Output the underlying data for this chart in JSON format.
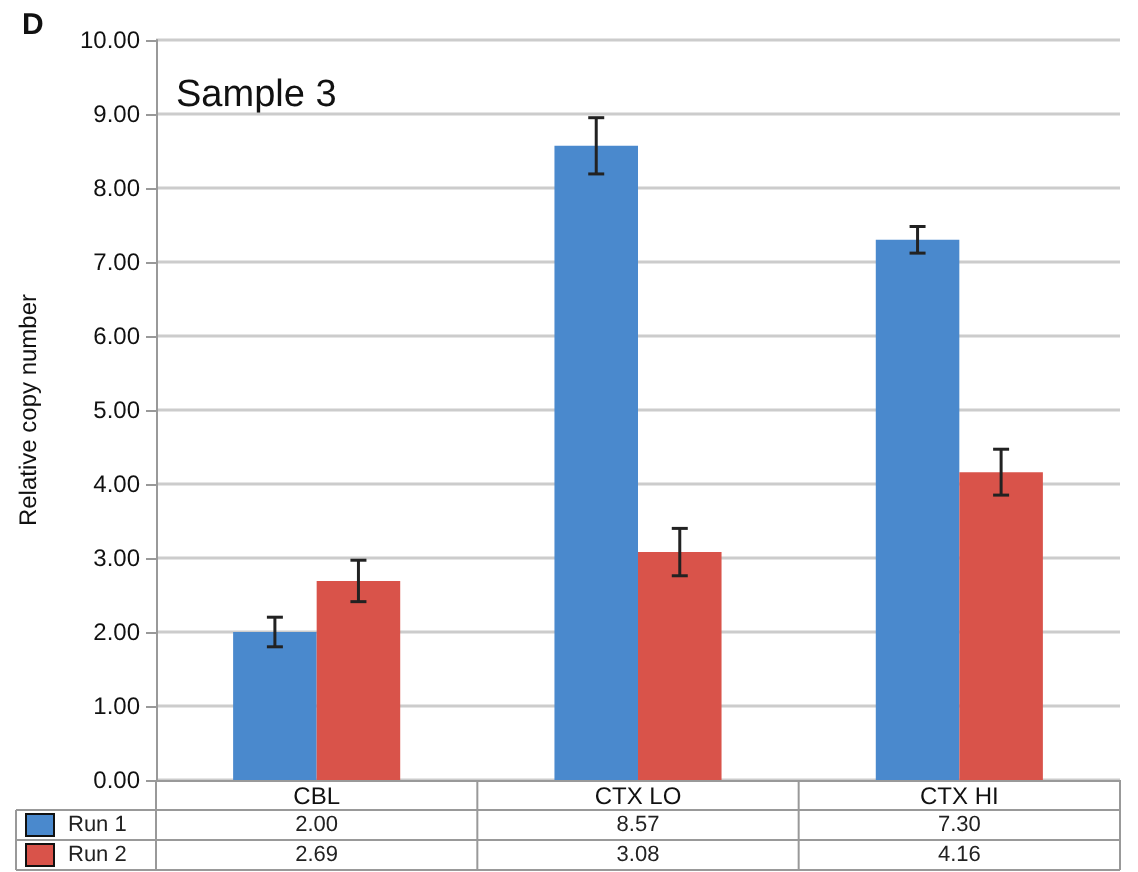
{
  "chart_data": {
    "type": "bar",
    "title": "D",
    "ylabel": "Relative copy number",
    "annotations": [
      "Sample 3"
    ],
    "categories": [
      "CBL",
      "CTX LO",
      "CTX HI"
    ],
    "series": [
      {
        "name": "Run 1",
        "color": "#4a89cd",
        "values": [
          2.0,
          8.57,
          7.3
        ],
        "errors": [
          0.2,
          0.38,
          0.18
        ],
        "value_labels": [
          "2.00",
          "8.57",
          "7.30"
        ]
      },
      {
        "name": "Run 2",
        "color": "#d9534a",
        "values": [
          2.69,
          3.08,
          4.16
        ],
        "errors": [
          0.28,
          0.32,
          0.31
        ],
        "value_labels": [
          "2.69",
          "3.08",
          "4.16"
        ]
      }
    ],
    "ylim": [
      0,
      10
    ],
    "yticks": [
      {
        "value": 0,
        "label": "0.00"
      },
      {
        "value": 1,
        "label": "1.00"
      },
      {
        "value": 2,
        "label": "2.00"
      },
      {
        "value": 3,
        "label": "3.00"
      },
      {
        "value": 4,
        "label": "4.00"
      },
      {
        "value": 5,
        "label": "5.00"
      },
      {
        "value": 6,
        "label": "6.00"
      },
      {
        "value": 7,
        "label": "7.00"
      },
      {
        "value": 8,
        "label": "8.00"
      },
      {
        "value": 9,
        "label": "9.00"
      },
      {
        "value": 10,
        "label": "10.00"
      }
    ],
    "grid": "y",
    "legend": "bottom"
  }
}
